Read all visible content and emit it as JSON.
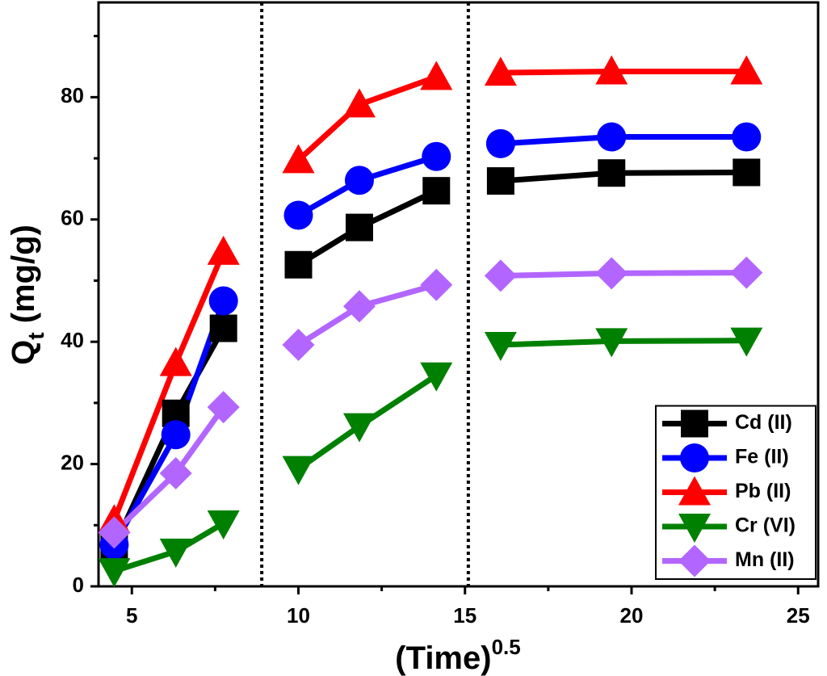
{
  "chart_data": {
    "type": "line",
    "x": [
      4.47,
      6.32,
      7.75,
      10,
      11.83,
      14.14,
      16.07,
      19.4,
      23.45
    ],
    "series": [
      {
        "name": "Cd (II)",
        "color": "#000000",
        "marker": "square",
        "values": [
          6.5,
          28.3,
          42.2,
          52.6,
          58.7,
          64.7,
          66.3,
          67.6,
          67.7
        ]
      },
      {
        "name": "Fe (II)",
        "color": "#0000ff",
        "marker": "circle",
        "values": [
          6.8,
          24.8,
          46.7,
          60.7,
          66.4,
          70.3,
          72.4,
          73.5,
          73.5
        ]
      },
      {
        "name": "Pb (II)",
        "color": "#ff0000",
        "marker": "triangle-up",
        "values": [
          10.8,
          36.5,
          54.7,
          69.7,
          78.8,
          83.3,
          84.0,
          84.2,
          84.2
        ]
      },
      {
        "name": "Cr (VI)",
        "color": "#008000",
        "marker": "triangle-down",
        "values": [
          2.5,
          5.7,
          10.3,
          19.2,
          26.2,
          34.5,
          39.5,
          40.1,
          40.2
        ]
      },
      {
        "name": "Mn (II)",
        "color": "#b266ff",
        "marker": "diamond",
        "values": [
          8.8,
          18.5,
          29.3,
          39.5,
          45.8,
          49.3,
          50.8,
          51.2,
          51.3
        ]
      }
    ],
    "vlines": [
      8.9,
      15.1
    ],
    "xlim": [
      4,
      25.6
    ],
    "xticks": [
      5,
      10,
      15,
      20,
      25
    ],
    "ylim": [
      0,
      95.5
    ],
    "yticks": [
      0,
      20,
      40,
      60,
      80
    ],
    "xlabel": {
      "main": "(Time)",
      "sup": "0.5"
    },
    "ylabel": {
      "main": "Q",
      "sub": "t",
      "rest": " (mg/g)"
    },
    "legend": "lower right"
  }
}
